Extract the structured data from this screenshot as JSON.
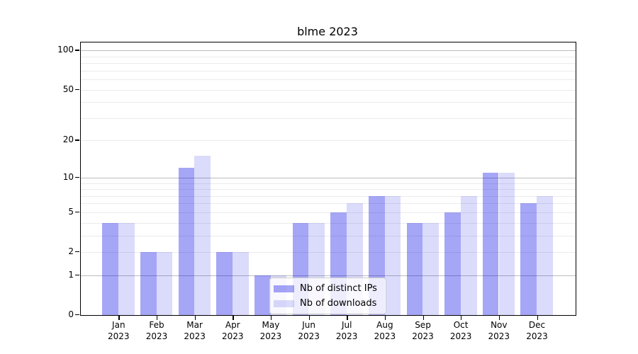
{
  "chart_data": {
    "type": "bar",
    "title": "blme 2023",
    "categories": [
      "Jan 2023",
      "Feb 2023",
      "Mar 2023",
      "Apr 2023",
      "May 2023",
      "Jun 2023",
      "Jul 2023",
      "Aug 2023",
      "Sep 2023",
      "Oct 2023",
      "Nov 2023",
      "Dec 2023"
    ],
    "series": [
      {
        "name": "Nb of distinct IPs",
        "color": "rgba(0, 0, 230, 0.35)",
        "values": [
          4,
          2,
          12,
          2,
          1,
          4,
          5,
          7,
          4,
          5,
          11,
          6
        ]
      },
      {
        "name": "Nb of downloads",
        "color": "rgba(0, 0, 230, 0.14)",
        "values": [
          4,
          2,
          15,
          2,
          1,
          4,
          6,
          7,
          4,
          7,
          11,
          7
        ]
      }
    ],
    "xlabel": "",
    "ylabel": "",
    "yscale": "log1p",
    "ylim": [
      0,
      115
    ],
    "yticks": [
      {
        "value": 0,
        "label": "0"
      },
      {
        "value": 1,
        "label": "1"
      },
      {
        "value": 2,
        "label": "2"
      },
      {
        "value": 5,
        "label": "5"
      },
      {
        "value": 10,
        "label": "10"
      },
      {
        "value": 20,
        "label": "20"
      },
      {
        "value": 50,
        "label": "50"
      },
      {
        "value": 100,
        "label": "100"
      }
    ],
    "grid": {
      "major_values": [
        1,
        10,
        100
      ],
      "minor_values": [
        2,
        3,
        4,
        5,
        6,
        7,
        8,
        9,
        20,
        30,
        40,
        50,
        60,
        70,
        80,
        90
      ],
      "major_color": "#bcbcbc",
      "minor_color": "#ebebeb"
    },
    "legend_position": "lower center"
  }
}
